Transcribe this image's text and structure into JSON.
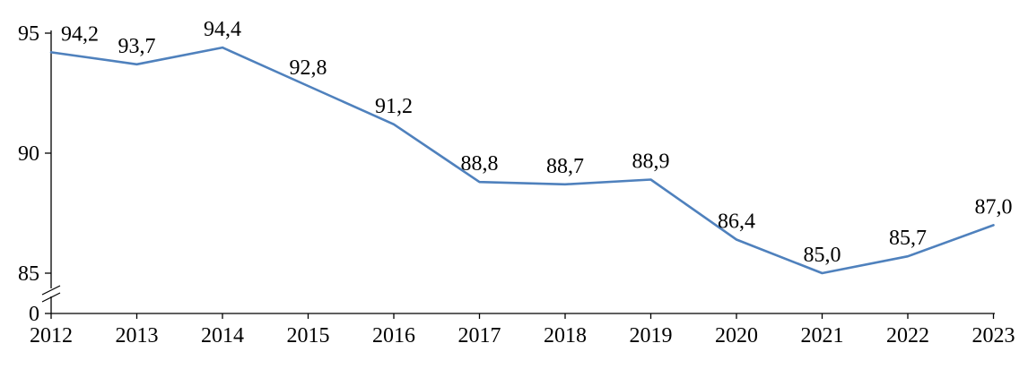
{
  "chart_data": {
    "type": "line",
    "title": "",
    "xlabel": "",
    "ylabel": "",
    "categories": [
      "2012",
      "2013",
      "2014",
      "2015",
      "2016",
      "2017",
      "2018",
      "2019",
      "2020",
      "2021",
      "2022",
      "2023"
    ],
    "series": [
      {
        "name": "",
        "values": [
          94.2,
          93.7,
          94.4,
          92.8,
          91.2,
          88.8,
          88.7,
          88.9,
          86.4,
          85.0,
          85.7,
          87.0
        ]
      }
    ],
    "data_labels": [
      "94,2",
      "93,7",
      "94,4",
      "92,8",
      "91,2",
      "88,8",
      "88,7",
      "88,9",
      "86,4",
      "85,0",
      "85,7",
      "87,0"
    ],
    "y_tick_labels": [
      "95",
      "90",
      "85",
      "0"
    ],
    "y_tick_values": [
      95,
      90,
      85,
      0
    ],
    "ylim": [
      85,
      95
    ],
    "axis_break_between": [
      0,
      85
    ],
    "grid": false,
    "legend": "none",
    "line_color": "#4f81bd",
    "axis_color": "#000000",
    "text_color": "#000000"
  }
}
